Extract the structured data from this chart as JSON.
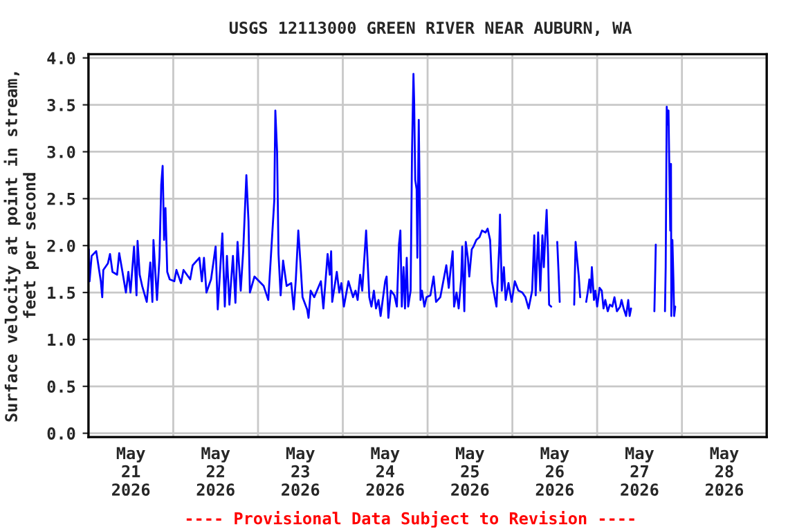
{
  "chart_data": {
    "type": "line",
    "title": "USGS 12113000 GREEN RIVER NEAR AUBURN, WA",
    "ylabel": "Surface velocity at point in stream,\nfeet per second",
    "annotations": [
      "---- Provisional Data Subject to Revision ----"
    ],
    "xlim": [
      "2026-05-21T00:00",
      "2026-05-29T00:00"
    ],
    "xticks": [
      {
        "value": "2026-05-21T00:00",
        "label": null
      },
      {
        "value": "2026-05-21T12:00",
        "label": "May\n21\n2026"
      },
      {
        "value": "2026-05-22T00:00",
        "label": null
      },
      {
        "value": "2026-05-22T12:00",
        "label": "May\n22\n2026"
      },
      {
        "value": "2026-05-23T00:00",
        "label": null
      },
      {
        "value": "2026-05-23T12:00",
        "label": "May\n23\n2026"
      },
      {
        "value": "2026-05-24T00:00",
        "label": null
      },
      {
        "value": "2026-05-24T12:00",
        "label": "May\n24\n2026"
      },
      {
        "value": "2026-05-25T00:00",
        "label": null
      },
      {
        "value": "2026-05-25T12:00",
        "label": "May\n25\n2026"
      },
      {
        "value": "2026-05-26T00:00",
        "label": null
      },
      {
        "value": "2026-05-26T12:00",
        "label": "May\n26\n2026"
      },
      {
        "value": "2026-05-27T00:00",
        "label": null
      },
      {
        "value": "2026-05-27T12:00",
        "label": "May\n27\n2026"
      },
      {
        "value": "2026-05-28T00:00",
        "label": null
      },
      {
        "value": "2026-05-28T12:00",
        "label": "May\n28\n2026"
      },
      {
        "value": "2026-05-29T00:00",
        "label": null
      }
    ],
    "ylim": [
      -0.04,
      4.04
    ],
    "yticks": [
      {
        "value": 0,
        "label": "0.0"
      },
      {
        "value": 0.5,
        "label": "0.5"
      },
      {
        "value": 1,
        "label": "1.0"
      },
      {
        "value": 1.5,
        "label": "1.5"
      },
      {
        "value": 2,
        "label": "2.0"
      },
      {
        "value": 2.5,
        "label": "2.5"
      },
      {
        "value": 3,
        "label": "3.0"
      },
      {
        "value": 3.5,
        "label": "3.5"
      },
      {
        "value": 4,
        "label": "4.0"
      }
    ],
    "grid": true,
    "series": [
      {
        "color": "#0000ff",
        "x": [
          "2026-05-21T00:06",
          "2026-05-21T00:18",
          "2026-05-21T00:54",
          "2026-05-21T02:12",
          "2026-05-21T03:30",
          "2026-05-21T03:54",
          "2026-05-21T04:12",
          "2026-05-21T05:30",
          "2026-05-21T06:06",
          "2026-05-21T06:48",
          "2026-05-21T08:06",
          "2026-05-21T08:42",
          "2026-05-21T09:24",
          "2026-05-21T10:36",
          "2026-05-21T11:18",
          "2026-05-21T11:54",
          "2026-05-21T12:54",
          "2026-05-21T13:36",
          "2026-05-21T13:54",
          "2026-05-21T14:30",
          "2026-05-21T15:12",
          "2026-05-21T16:30",
          "2026-05-21T17:30",
          "2026-05-21T18:06",
          "2026-05-21T18:24",
          "2026-05-21T19:24",
          "2026-05-21T20:06",
          "2026-05-21T20:36",
          "2026-05-21T21:00",
          "2026-05-21T21:24",
          "2026-05-21T21:48",
          "2026-05-21T22:18",
          "2026-05-21T23:00",
          "2026-05-22T00:18",
          "2026-05-22T00:54",
          "2026-05-22T02:12",
          "2026-05-22T02:54",
          "2026-05-22T04:48",
          "2026-05-22T05:30",
          "2026-05-22T07:24",
          "2026-05-22T08:06",
          "2026-05-22T08:42",
          "2026-05-22T09:24",
          "2026-05-22T10:42",
          "2026-05-22T12:00",
          "2026-05-22T12:36",
          "2026-05-22T13:54",
          "2026-05-22T14:36",
          "2026-05-22T15:12",
          "2026-05-22T15:54",
          "2026-05-22T16:54",
          "2026-05-22T17:36",
          "2026-05-22T18:12",
          "2026-05-22T19:06",
          "2026-05-22T19:48",
          "2026-05-22T20:42",
          "2026-05-22T21:18",
          "2026-05-22T21:42",
          "2026-05-22T23:00",
          "2026-05-23T00:18",
          "2026-05-23T01:36",
          "2026-05-23T02:54",
          "2026-05-23T04:36",
          "2026-05-23T04:54",
          "2026-05-23T05:24",
          "2026-05-23T05:48",
          "2026-05-23T06:24",
          "2026-05-23T07:06",
          "2026-05-23T08:06",
          "2026-05-23T09:24",
          "2026-05-23T10:06",
          "2026-05-23T10:42",
          "2026-05-23T11:24",
          "2026-05-23T12:00",
          "2026-05-23T12:36",
          "2026-05-23T13:54",
          "2026-05-23T14:18",
          "2026-05-23T14:54",
          "2026-05-23T15:54",
          "2026-05-23T17:48",
          "2026-05-23T18:30",
          "2026-05-23T19:42",
          "2026-05-23T20:18",
          "2026-05-23T20:42",
          "2026-05-23T21:00",
          "2026-05-23T22:18",
          "2026-05-23T23:00",
          "2026-05-23T23:36",
          "2026-05-24T00:18",
          "2026-05-24T01:36",
          "2026-05-24T02:54",
          "2026-05-24T03:36",
          "2026-05-24T04:12",
          "2026-05-24T04:54",
          "2026-05-24T05:30",
          "2026-05-24T06:36",
          "2026-05-24T07:06",
          "2026-05-24T07:30",
          "2026-05-24T08:06",
          "2026-05-24T08:48",
          "2026-05-24T09:24",
          "2026-05-24T10:06",
          "2026-05-24T10:42",
          "2026-05-24T11:24",
          "2026-05-24T12:00",
          "2026-05-24T12:24",
          "2026-05-24T12:54",
          "2026-05-24T13:36",
          "2026-05-24T14:36",
          "2026-05-24T15:18",
          "2026-05-24T15:54",
          "2026-05-24T16:18",
          "2026-05-24T16:42",
          "2026-05-24T17:12",
          "2026-05-24T17:36",
          "2026-05-24T18:06",
          "2026-05-24T18:30",
          "2026-05-24T19:12",
          "2026-05-24T19:36",
          "2026-05-24T20:00",
          "2026-05-24T20:12",
          "2026-05-24T20:30",
          "2026-05-24T20:54",
          "2026-05-24T21:06",
          "2026-05-24T21:30",
          "2026-05-24T21:48",
          "2026-05-24T22:00",
          "2026-05-24T22:24",
          "2026-05-24T23:06",
          "2026-05-24T23:42",
          "2026-05-25T00:48",
          "2026-05-25T01:42",
          "2026-05-25T02:24",
          "2026-05-25T03:36",
          "2026-05-25T04:42",
          "2026-05-25T05:18",
          "2026-05-25T06:00",
          "2026-05-25T06:30",
          "2026-05-25T07:06",
          "2026-05-25T07:30",
          "2026-05-25T08:12",
          "2026-05-25T08:48",
          "2026-05-25T09:30",
          "2026-05-25T09:48",
          "2026-05-25T10:24",
          "2026-05-25T10:48",
          "2026-05-25T11:24",
          "2026-05-25T11:48",
          "2026-05-25T12:30",
          "2026-05-25T13:00",
          "2026-05-25T13:48",
          "2026-05-25T14:42",
          "2026-05-25T15:24",
          "2026-05-25T16:24",
          "2026-05-25T17:00",
          "2026-05-25T17:42",
          "2026-05-25T18:12",
          "2026-05-25T19:00",
          "2026-05-25T19:30",
          "2026-05-25T20:18",
          "2026-05-25T20:30",
          "2026-05-25T21:00",
          "2026-05-25T21:36",
          "2026-05-25T22:06",
          "2026-05-25T22:54",
          "2026-05-25T23:48",
          "2026-05-26T00:42",
          "2026-05-26T01:42",
          "2026-05-26T02:48",
          "2026-05-26T03:42",
          "2026-05-26T04:36",
          "2026-05-26T05:36",
          "2026-05-26T06:12",
          "2026-05-26T06:36",
          "2026-05-26T07:18",
          "2026-05-26T07:54",
          "2026-05-26T08:30",
          "2026-05-26T08:54",
          "2026-05-26T09:18",
          "2026-05-26T09:42",
          "2026-05-26T10:06",
          "2026-05-26T10:24",
          "2026-05-26T11:00",
          "2026-05-26T12:00",
          "2026-05-26T12:42",
          "2026-05-26T13:06",
          "2026-05-26T13:24",
          "2026-05-26T15:00",
          "2026-05-26T17:30",
          "2026-05-26T17:54",
          "2026-05-26T18:18",
          "2026-05-26T18:48",
          "2026-05-26T19:12",
          "2026-05-26T20:00",
          "2026-05-26T20:54",
          "2026-05-26T21:24",
          "2026-05-26T21:48",
          "2026-05-26T22:12",
          "2026-05-26T22:30",
          "2026-05-26T23:06",
          "2026-05-26T23:30",
          "2026-05-27T00:00",
          "2026-05-27T00:42",
          "2026-05-27T01:18",
          "2026-05-27T01:48",
          "2026-05-27T02:18",
          "2026-05-27T03:00",
          "2026-05-27T03:36",
          "2026-05-27T04:18",
          "2026-05-27T04:54",
          "2026-05-27T05:36",
          "2026-05-27T06:30",
          "2026-05-27T06:54",
          "2026-05-27T07:30",
          "2026-05-27T08:12",
          "2026-05-27T08:48",
          "2026-05-27T09:12",
          "2026-05-27T09:36",
          "2026-05-27T12:00",
          "2026-05-27T16:12",
          "2026-05-27T16:24",
          "2026-05-27T16:36",
          "2026-05-27T18:00",
          "2026-05-27T19:12",
          "2026-05-27T19:24",
          "2026-05-27T19:42",
          "2026-05-27T19:54",
          "2026-05-27T20:12",
          "2026-05-27T20:24",
          "2026-05-27T20:42",
          "2026-05-27T20:54",
          "2026-05-27T21:00",
          "2026-05-27T21:18",
          "2026-05-27T21:36",
          "2026-05-27T21:48",
          "2026-05-27T22:06"
        ],
        "values": [
          1.96,
          1.62,
          1.89,
          1.94,
          1.62,
          1.45,
          1.74,
          1.81,
          1.91,
          1.72,
          1.69,
          1.92,
          1.77,
          1.5,
          1.72,
          1.5,
          1.99,
          1.47,
          2.05,
          1.69,
          1.57,
          1.4,
          1.82,
          1.4,
          2.06,
          1.42,
          1.87,
          2.65,
          2.85,
          2.06,
          2.4,
          1.72,
          1.64,
          1.62,
          1.74,
          1.6,
          1.74,
          1.64,
          1.79,
          1.87,
          1.62,
          1.87,
          1.5,
          1.64,
          1.99,
          1.32,
          2.13,
          1.35,
          1.89,
          1.37,
          1.89,
          1.39,
          2.04,
          1.52,
          1.94,
          2.75,
          2.26,
          1.5,
          1.67,
          1.62,
          1.57,
          1.42,
          2.48,
          3.44,
          3.0,
          1.91,
          1.47,
          1.84,
          1.57,
          1.6,
          1.32,
          1.64,
          2.16,
          1.82,
          1.45,
          1.32,
          1.23,
          1.52,
          1.45,
          1.62,
          1.33,
          1.91,
          1.69,
          1.94,
          1.4,
          1.72,
          1.5,
          1.6,
          1.35,
          1.62,
          1.45,
          1.52,
          1.42,
          1.69,
          1.52,
          2.16,
          1.77,
          1.45,
          1.35,
          1.52,
          1.33,
          1.42,
          1.25,
          1.45,
          1.62,
          1.67,
          1.23,
          1.52,
          1.47,
          1.35,
          2.01,
          2.16,
          1.35,
          1.77,
          1.33,
          1.87,
          1.35,
          1.52,
          3.02,
          3.83,
          3.53,
          2.7,
          2.6,
          1.87,
          3.34,
          2.4,
          1.42,
          1.52,
          1.35,
          1.45,
          1.47,
          1.67,
          1.4,
          1.45,
          1.67,
          1.79,
          1.55,
          1.74,
          1.94,
          1.35,
          1.5,
          1.33,
          1.64,
          1.99,
          1.3,
          2.04,
          1.87,
          1.67,
          1.96,
          1.99,
          2.06,
          2.09,
          2.16,
          2.14,
          2.18,
          2.06,
          1.62,
          1.45,
          1.35,
          2.01,
          2.33,
          1.52,
          1.77,
          1.42,
          1.6,
          1.4,
          1.62,
          1.52,
          1.5,
          1.45,
          1.33,
          1.52,
          2.11,
          1.47,
          2.14,
          1.52,
          2.11,
          1.77,
          2.09,
          2.38,
          1.91,
          1.37,
          1.35,
          null,
          2.04,
          1.69,
          1.4,
          null,
          1.37,
          2.04,
          1.87,
          1.67,
          1.45,
          null,
          1.4,
          1.52,
          1.64,
          1.5,
          1.77,
          1.42,
          1.52,
          1.35,
          1.55,
          1.52,
          1.33,
          1.42,
          1.3,
          1.37,
          1.35,
          1.45,
          1.3,
          1.35,
          1.42,
          1.33,
          1.25,
          1.42,
          1.25,
          1.33,
          null,
          1.3,
          1.64,
          2.01,
          null,
          1.3,
          1.77,
          3.48,
          3.29,
          3.44,
          2.9,
          2.16,
          2.87,
          1.25,
          2.06,
          1.62,
          1.25,
          1.35
        ]
      }
    ]
  }
}
